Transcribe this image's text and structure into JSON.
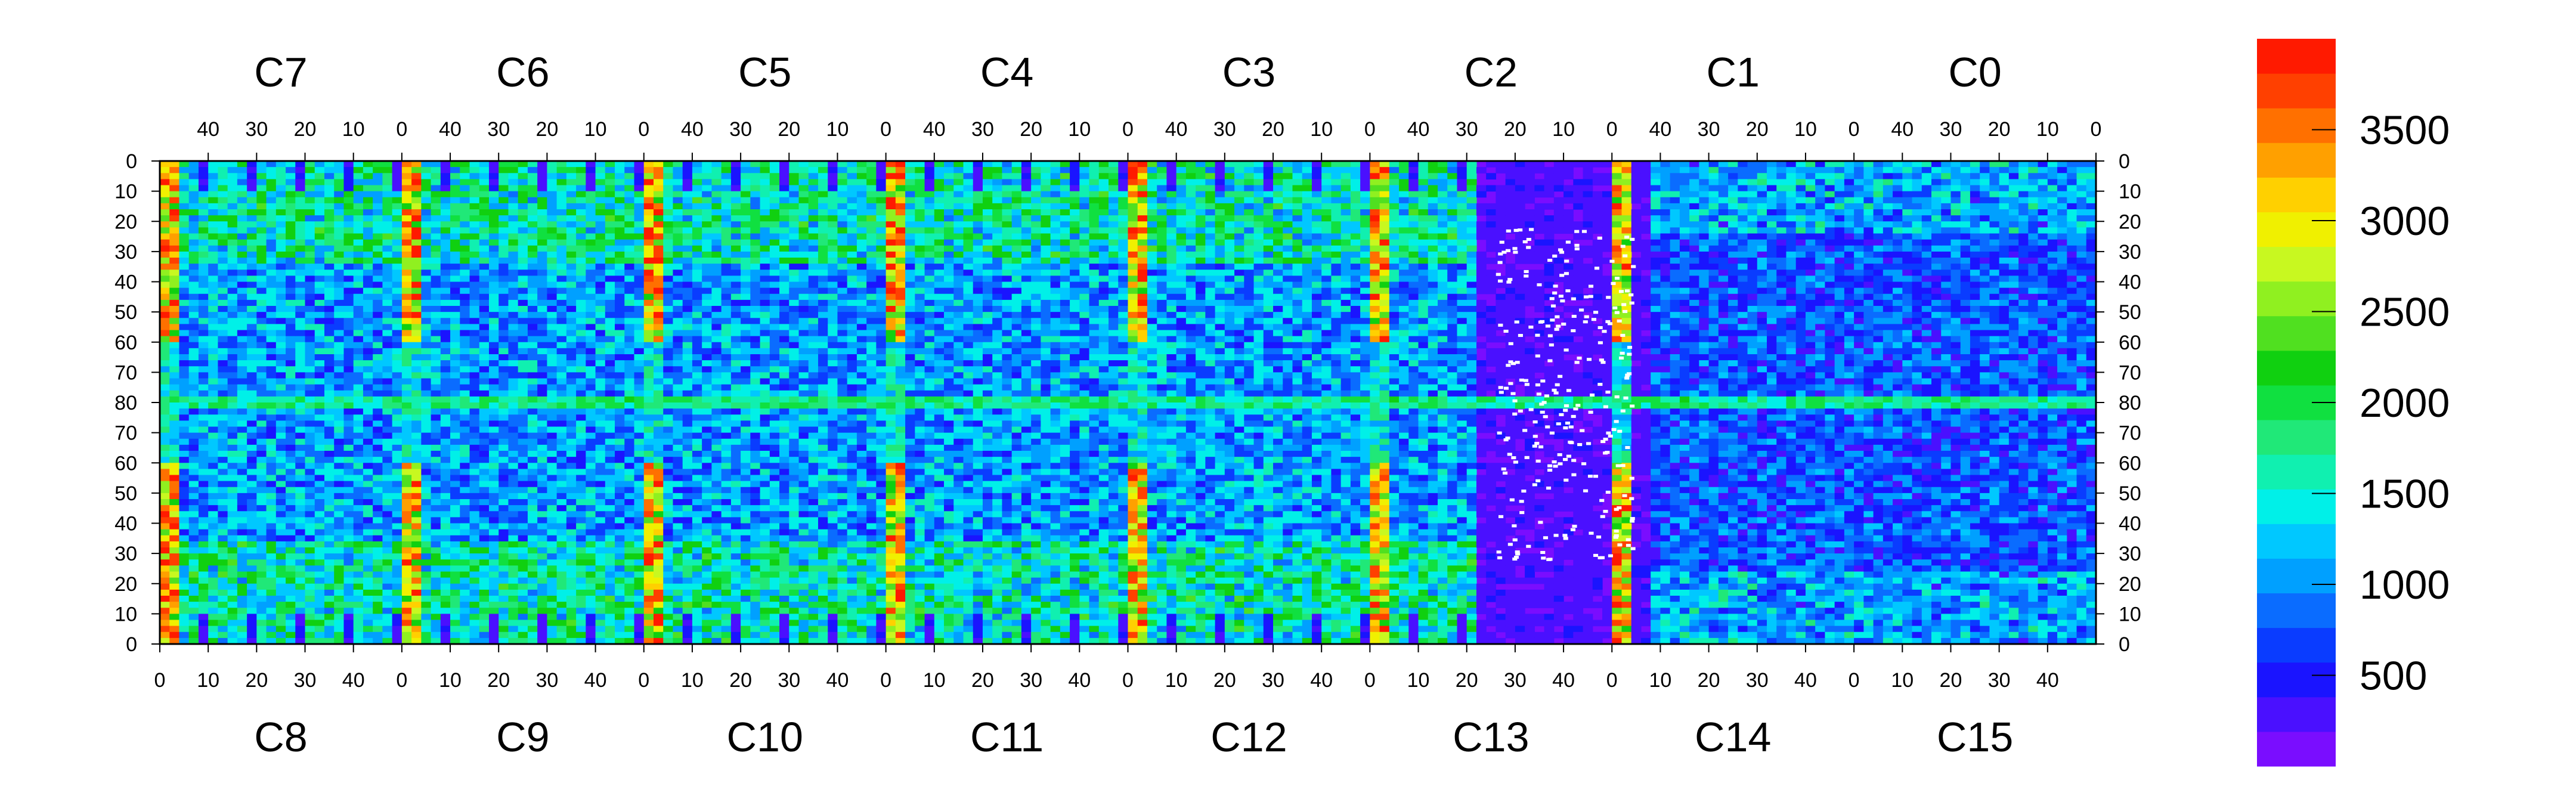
{
  "chart_data": {
    "type": "heatmap",
    "title": "",
    "top_chip_labels": [
      "C7",
      "C6",
      "C5",
      "C4",
      "C3",
      "C2",
      "C1",
      "C0"
    ],
    "bottom_chip_labels": [
      "C8",
      "C9",
      "C10",
      "C11",
      "C12",
      "C13",
      "C14",
      "C15"
    ],
    "top_axis_ticks": [
      "40",
      "30",
      "20",
      "10",
      "0"
    ],
    "bottom_axis_ticks": [
      "0",
      "10",
      "20",
      "30",
      "40"
    ],
    "columns_per_chip": 50,
    "y_ticks": [
      "0",
      "10",
      "20",
      "30",
      "40",
      "50",
      "60",
      "70",
      "80",
      "70",
      "60",
      "50",
      "40",
      "30",
      "20",
      "10",
      "0"
    ],
    "rows_per_half": 80,
    "z_range": [
      0,
      4000
    ],
    "colorbar": {
      "ticks": [
        500,
        1000,
        1500,
        2000,
        2500,
        3000,
        3500
      ],
      "tick_labels": [
        "500",
        "1000",
        "1500",
        "2000",
        "2500",
        "3000",
        "3500"
      ],
      "palette": [
        "#7a0dff",
        "#4a10ff",
        "#1a14ff",
        "#0a3cff",
        "#0a6cff",
        "#00a0ff",
        "#00c8ff",
        "#00f0e8",
        "#10f0b0",
        "#20e878",
        "#10e040",
        "#10d010",
        "#50e020",
        "#90f020",
        "#c8f820",
        "#f0f000",
        "#ffd000",
        "#ffa000",
        "#ff7000",
        "#ff4000",
        "#ff1a00"
      ]
    },
    "grid": false,
    "legend": "colorbar-right"
  }
}
